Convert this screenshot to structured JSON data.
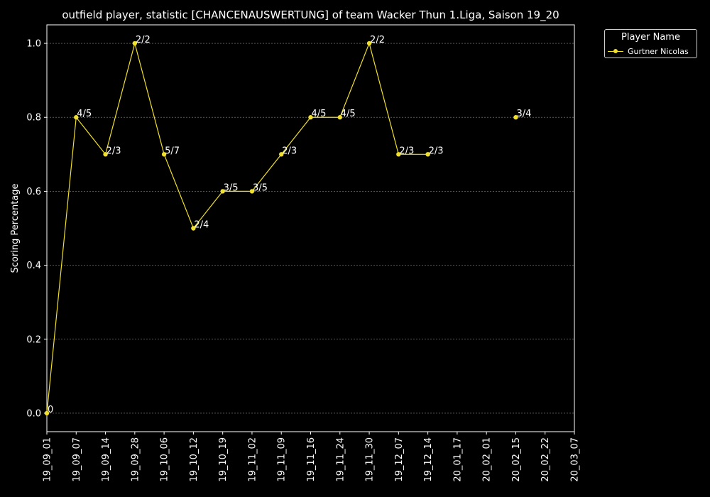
{
  "chart_data": {
    "type": "line",
    "title": "outfield player, statistic [CHANCENAUSWERTUNG] of team Wacker Thun 1.Liga, Saison 19_20",
    "xlabel": "",
    "ylabel": "Scoring Percentage",
    "categories": [
      "19_09_01",
      "19_09_07",
      "19_09_14",
      "19_09_28",
      "19_10_06",
      "19_10_12",
      "19_10_19",
      "19_11_02",
      "19_11_09",
      "19_11_16",
      "19_11_24",
      "19_11_30",
      "19_12_07",
      "19_12_14",
      "20_01_17",
      "20_02_01",
      "20_02_15",
      "20_02_22",
      "20_03_07"
    ],
    "yticks": [
      0.0,
      0.2,
      0.4,
      0.6,
      0.8,
      1.0
    ],
    "ylim": [
      -0.05,
      1.05
    ],
    "grid": true,
    "legend": {
      "title": "Player Name",
      "placement": "outside-top-right"
    },
    "series": [
      {
        "name": "Gurtner Nicolas",
        "color": "#f0df2b",
        "values": [
          0,
          0.8,
          0.7,
          1.0,
          0.7,
          0.5,
          0.6,
          0.6,
          0.7,
          0.8,
          0.8,
          1.0,
          0.7,
          0.7,
          null,
          null,
          0.8,
          null,
          null
        ],
        "labels": [
          "0",
          "4/5",
          "2/3",
          "2/2",
          "5/7",
          "2/4",
          "3/5",
          "3/5",
          "2/3",
          "4/5",
          "4/5",
          "2/2",
          "2/3",
          "2/3",
          null,
          null,
          "3/4",
          null,
          null
        ]
      }
    ]
  }
}
